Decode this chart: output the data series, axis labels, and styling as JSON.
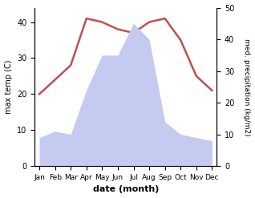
{
  "months": [
    "Jan",
    "Feb",
    "Mar",
    "Apr",
    "May",
    "Jun",
    "Jul",
    "Aug",
    "Sep",
    "Oct",
    "Nov",
    "Dec"
  ],
  "temperature": [
    20,
    24,
    28,
    41,
    40,
    38,
    37,
    40,
    41,
    35,
    25,
    21
  ],
  "precipitation": [
    9,
    11,
    10,
    24,
    35,
    35,
    45,
    40,
    14,
    10,
    9,
    8
  ],
  "temp_color": "#c0504d",
  "precip_fill_color": "#c5caf0",
  "left_ylabel": "max temp (C)",
  "right_ylabel": "med. precipitation (kg/m2)",
  "xlabel": "date (month)",
  "ylim_left": [
    0,
    44
  ],
  "ylim_right": [
    0,
    50
  ],
  "left_yticks": [
    0,
    10,
    20,
    30,
    40
  ],
  "right_yticks": [
    0,
    10,
    20,
    30,
    40,
    50
  ]
}
